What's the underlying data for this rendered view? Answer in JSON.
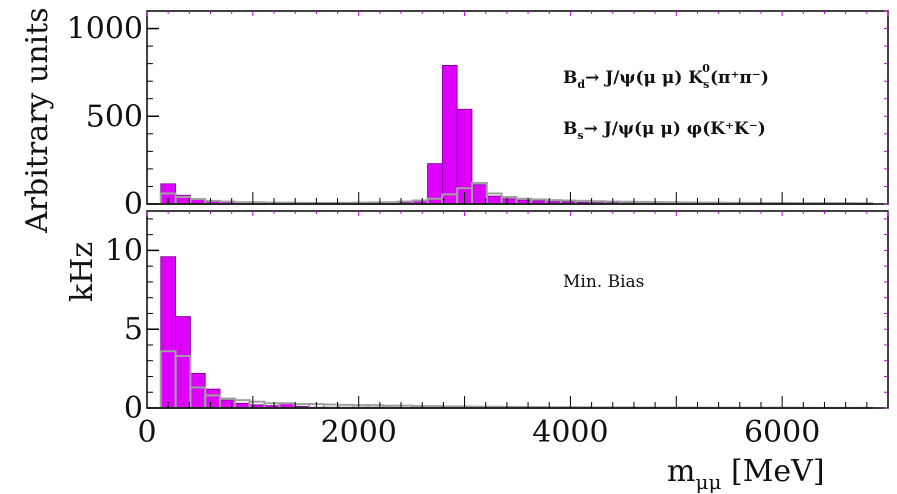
{
  "chart_data": [
    {
      "type": "bar",
      "panel": "top",
      "ylabel": "Arbitrary units",
      "ylim": [
        0,
        1100
      ],
      "xlim": [
        0,
        7000
      ],
      "y_ticks": [
        "0",
        "500",
        "1000"
      ],
      "y_tick_values": [
        0,
        500,
        1000
      ],
      "annotations": [
        {
          "main": "B",
          "sub": "d",
          "rest": "→ J/ψ(μ μ) K",
          "sub2": "s",
          "sup2": "0",
          "tail": "(π⁺π⁻)"
        },
        {
          "main": "B",
          "sub": "s",
          "rest": "→ J/ψ(μ μ) φ(K⁺K⁻)"
        }
      ],
      "bin_width": 140,
      "x": [
        200,
        340,
        480,
        620,
        760,
        900,
        1040,
        1180,
        1320,
        1460,
        1600,
        1740,
        1880,
        2020,
        2160,
        2300,
        2440,
        2580,
        2720,
        2860,
        3000,
        3140,
        3280,
        3420,
        3560,
        3700,
        3840,
        3980,
        4120,
        4260,
        4400,
        4540,
        4680,
        4820,
        4960,
        5100,
        5240,
        5380,
        5520,
        5660,
        5800,
        5940,
        6080,
        6220,
        6360,
        6500,
        6640,
        6780
      ],
      "series": [
        {
          "values": [
            115,
            50,
            30,
            15,
            12,
            8,
            8,
            6,
            5,
            5,
            4,
            4,
            4,
            4,
            5,
            6,
            8,
            20,
            230,
            790,
            540,
            110,
            45,
            30,
            22,
            18,
            14,
            12,
            10,
            8,
            7,
            6,
            5,
            5,
            4,
            4,
            3,
            3,
            3,
            3,
            2,
            2,
            2,
            2,
            2,
            2,
            2,
            2
          ],
          "color": "#dd00ff"
        },
        {
          "values": [
            60,
            40,
            28,
            18,
            14,
            10,
            10,
            8,
            8,
            7,
            6,
            6,
            7,
            8,
            9,
            10,
            14,
            20,
            30,
            55,
            90,
            120,
            60,
            40,
            30,
            26,
            22,
            20,
            18,
            16,
            14,
            13,
            12,
            11,
            10,
            9,
            8,
            8,
            7,
            7,
            6,
            6,
            6,
            5,
            5,
            5,
            5,
            4
          ],
          "color": "#a0a0a0"
        }
      ]
    },
    {
      "type": "bar",
      "panel": "bottom",
      "ylabel": "kHz",
      "xlabel": "m_μμ [MeV]",
      "ylim": [
        0,
        12.5
      ],
      "xlim": [
        0,
        7000
      ],
      "y_ticks": [
        "0",
        "5",
        "10"
      ],
      "y_tick_values": [
        0,
        5,
        10
      ],
      "x_ticks": [
        "0",
        "2000",
        "4000",
        "6000"
      ],
      "x_tick_values": [
        0,
        2000,
        4000,
        6000
      ],
      "annotations": [
        {
          "text": "Min. Bias"
        }
      ],
      "bin_width": 140,
      "x": [
        200,
        340,
        480,
        620,
        760,
        900,
        1040,
        1180,
        1320,
        1460,
        1600,
        1740,
        1880,
        2020,
        2160,
        2300,
        2440,
        2580,
        2720,
        2860,
        3000,
        3140,
        3280,
        3420,
        3560,
        3700,
        3840,
        3980,
        4120,
        4260,
        4400,
        4540,
        4680,
        4820,
        4960,
        5100,
        5240,
        5380,
        5520,
        5660,
        5800,
        5940,
        6080,
        6220,
        6360,
        6500,
        6640,
        6780
      ],
      "series": [
        {
          "values": [
            9.6,
            5.8,
            2.2,
            1.2,
            0.5,
            0.3,
            0.2,
            0.15,
            0.3,
            0.1,
            0.05,
            0.05,
            0.05,
            0.05,
            0.05,
            0.05,
            0.03,
            0.03,
            0.02,
            0.02,
            0.02,
            0.02,
            0.02,
            0.02,
            0.02,
            0.01,
            0.01,
            0.01,
            0.01,
            0.01,
            0.01,
            0.01,
            0.01,
            0.01,
            0.01,
            0.01,
            0.01,
            0.01,
            0.01,
            0.01,
            0.01,
            0.01,
            0.01,
            0.01,
            0.01,
            0.01,
            0.01,
            0.01
          ],
          "color": "#dd00ff"
        },
        {
          "values": [
            3.6,
            3.3,
            1.3,
            0.8,
            0.6,
            0.5,
            0.4,
            0.3,
            0.3,
            0.25,
            0.25,
            0.22,
            0.2,
            0.18,
            0.18,
            0.15,
            0.15,
            0.12,
            0.12,
            0.1,
            0.1,
            0.08,
            0.08,
            0.07,
            0.06,
            0.06,
            0.05,
            0.05,
            0.05,
            0.04,
            0.04,
            0.04,
            0.03,
            0.03,
            0.03,
            0.03,
            0.02,
            0.02,
            0.02,
            0.02,
            0.02,
            0.02,
            0.02,
            0.01,
            0.01,
            0.01,
            0.01,
            0.01
          ],
          "color": "#a0a0a0"
        }
      ]
    }
  ]
}
